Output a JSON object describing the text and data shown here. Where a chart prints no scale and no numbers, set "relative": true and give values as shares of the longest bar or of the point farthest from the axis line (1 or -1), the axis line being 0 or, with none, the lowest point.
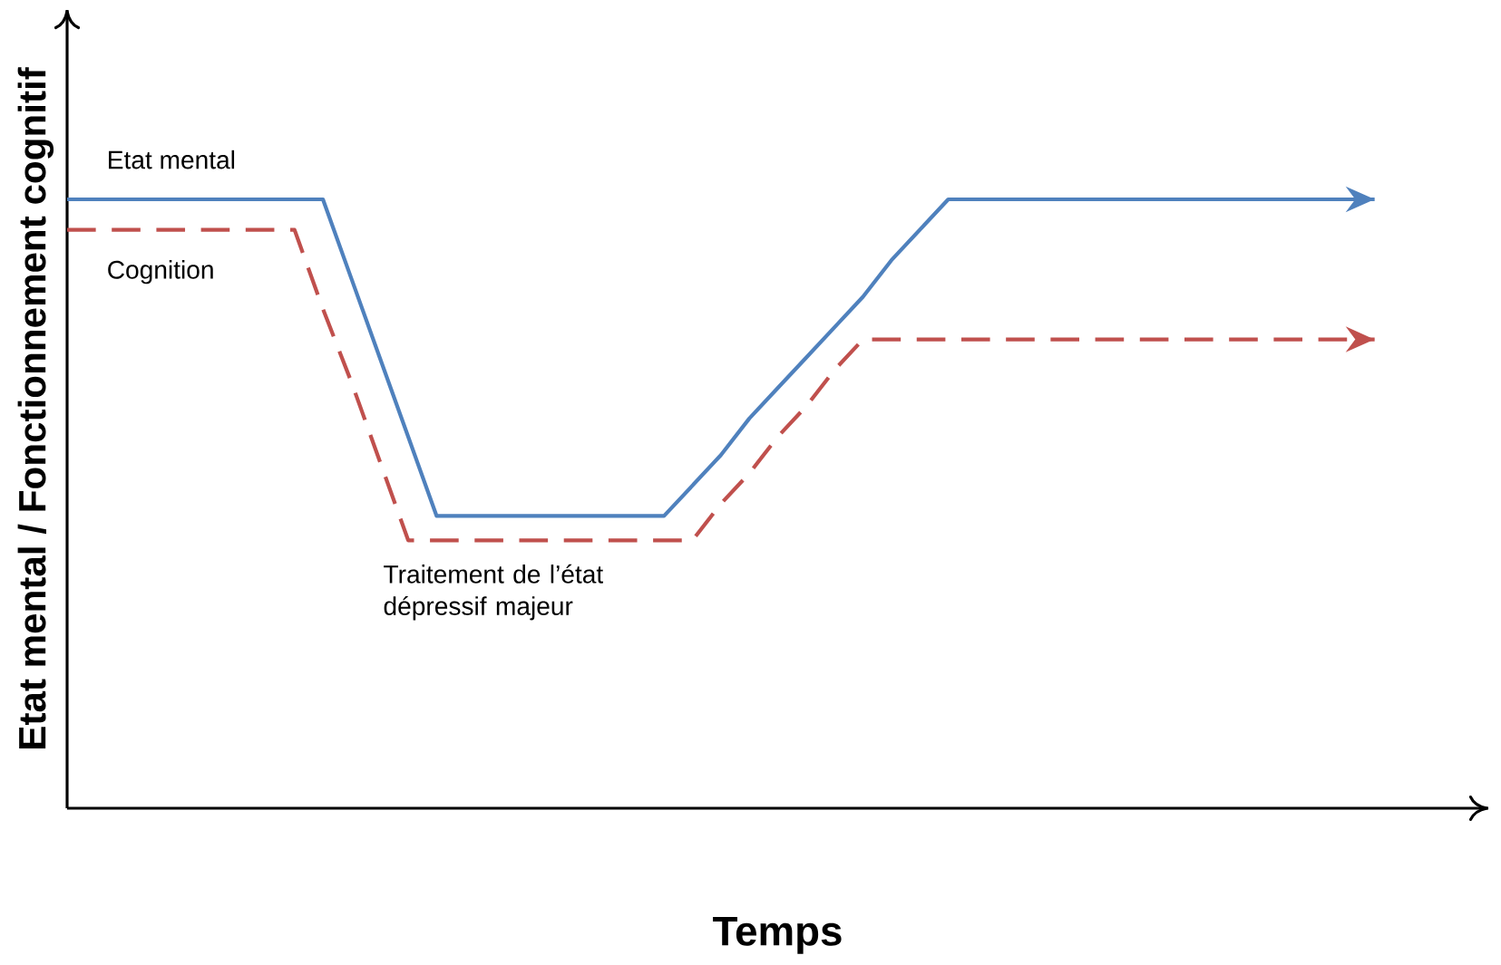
{
  "chart_data": {
    "type": "line",
    "relative": true,
    "xlabel": "Temps",
    "ylabel": "Etat mental / Fonctionnement cognitif",
    "categories": [
      null,
      null,
      null,
      null,
      null,
      null,
      null,
      null,
      null,
      null,
      null,
      null,
      null,
      null,
      null,
      null,
      null,
      null,
      null,
      null,
      null,
      null,
      null,
      null,
      null,
      null,
      null,
      null,
      null,
      null,
      null,
      null,
      null,
      null,
      null,
      null,
      null,
      null,
      null,
      null,
      null,
      null,
      null,
      null,
      null,
      null,
      null
    ],
    "series": [
      {
        "name": "Etat mental",
        "color": "#4f81bd",
        "line_style": "solid",
        "values": [
          1,
          1,
          1,
          1,
          1,
          1,
          1,
          1,
          1,
          1,
          0.87,
          0.74,
          0.61,
          0.48,
          0.48,
          0.48,
          0.48,
          0.48,
          0.48,
          0.48,
          0.48,
          0.48,
          0.53,
          0.58,
          0.64,
          0.69,
          0.74,
          0.79,
          0.84,
          0.9,
          0.95,
          1,
          1,
          1,
          1,
          1,
          1,
          1,
          1,
          1,
          1,
          1,
          1,
          1,
          1,
          1,
          1
        ]
      },
      {
        "name": "Cognition",
        "color": "#c0504d",
        "line_style": "dashed",
        "values": [
          0.95,
          0.95,
          0.95,
          0.95,
          0.95,
          0.95,
          0.95,
          0.95,
          0.95,
          0.82,
          0.7,
          0.57,
          0.44,
          0.44,
          0.44,
          0.44,
          0.44,
          0.44,
          0.44,
          0.44,
          0.44,
          0.44,
          0.44,
          0.5,
          0.55,
          0.61,
          0.66,
          0.72,
          0.77,
          0.77,
          0.77,
          0.77,
          0.77,
          0.77,
          0.77,
          0.77,
          0.77,
          0.77,
          0.77,
          0.77,
          0.77,
          0.77,
          0.77,
          0.77,
          0.77,
          0.77,
          0.77
        ]
      }
    ],
    "annotations": [
      "Traitement de l’état dépressif majeur"
    ]
  }
}
